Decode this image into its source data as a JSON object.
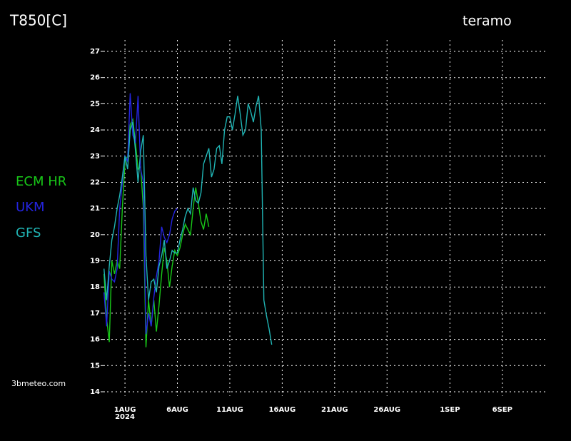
{
  "chart_data": {
    "type": "line",
    "title": "T850[C]",
    "subtitle": "teramo",
    "source": "3bmeteo.com",
    "year_label": "2024",
    "grid": true,
    "legend": "left",
    "x": [
      "2024-07-30T00:00",
      "2024-07-30T06:00",
      "2024-07-30T12:00",
      "2024-07-30T18:00",
      "2024-07-31T00:00",
      "2024-07-31T06:00",
      "2024-07-31T12:00",
      "2024-07-31T18:00",
      "2024-08-01T00:00",
      "2024-08-01T06:00",
      "2024-08-01T12:00",
      "2024-08-01T18:00",
      "2024-08-02T00:00",
      "2024-08-02T06:00",
      "2024-08-02T12:00",
      "2024-08-02T18:00",
      "2024-08-03T00:00",
      "2024-08-03T06:00",
      "2024-08-03T12:00",
      "2024-08-03T18:00",
      "2024-08-04T00:00",
      "2024-08-04T06:00",
      "2024-08-04T12:00",
      "2024-08-04T18:00",
      "2024-08-05T00:00",
      "2024-08-05T06:00",
      "2024-08-05T12:00",
      "2024-08-05T18:00",
      "2024-08-06T00:00",
      "2024-08-06T06:00",
      "2024-08-06T12:00",
      "2024-08-06T18:00",
      "2024-08-07T00:00",
      "2024-08-07T06:00",
      "2024-08-07T12:00",
      "2024-08-07T18:00",
      "2024-08-08T00:00",
      "2024-08-08T06:00",
      "2024-08-08T12:00",
      "2024-08-08T18:00",
      "2024-08-09T00:00",
      "2024-08-09T06:00",
      "2024-08-09T12:00",
      "2024-08-09T18:00",
      "2024-08-10T00:00",
      "2024-08-10T06:00",
      "2024-08-10T12:00",
      "2024-08-10T18:00",
      "2024-08-11T00:00",
      "2024-08-11T06:00",
      "2024-08-11T12:00",
      "2024-08-11T18:00",
      "2024-08-12T00:00",
      "2024-08-12T06:00",
      "2024-08-12T12:00",
      "2024-08-12T18:00",
      "2024-08-13T00:00",
      "2024-08-13T06:00",
      "2024-08-13T12:00",
      "2024-08-13T18:00",
      "2024-08-14T00:00",
      "2024-08-14T06:00",
      "2024-08-14T12:00",
      "2024-08-14T18:00",
      "2024-08-15T00:00"
    ],
    "series": [
      {
        "name": "ECM HR",
        "color": "#18c818",
        "values": [
          18.5,
          16.8,
          15.9,
          19.0,
          18.5,
          19.0,
          18.7,
          21.0,
          22.8,
          23.0,
          24.2,
          24.4,
          23.5,
          22.5,
          22.6,
          21.0,
          15.7,
          17.5,
          16.5,
          17.5,
          16.3,
          17.3,
          18.5,
          19.5,
          19.0,
          18.0,
          18.8,
          19.4,
          19.2,
          19.5,
          20.0,
          20.4,
          20.2,
          20.0,
          21.0,
          21.8,
          21.2,
          20.5,
          20.2,
          20.8,
          20.3,
          null,
          null,
          null,
          null,
          null,
          null,
          null,
          null,
          null,
          null,
          null,
          null,
          null,
          null,
          null,
          null,
          null,
          null,
          null,
          null,
          null,
          null,
          null,
          null
        ]
      },
      {
        "name": "UKM",
        "color": "#2424e0",
        "values": [
          17.8,
          16.5,
          18.6,
          18.3,
          18.2,
          18.7,
          21.0,
          22.0,
          23.0,
          22.8,
          25.4,
          23.8,
          23.5,
          25.3,
          22.5,
          22.0,
          16.2,
          17.0,
          16.5,
          17.6,
          18.4,
          19.0,
          20.3,
          19.9,
          19.7,
          20.0,
          20.6,
          20.9,
          21.0,
          null,
          null,
          null,
          null,
          null,
          null,
          null,
          null,
          null,
          null,
          null,
          null,
          null,
          null,
          null,
          null,
          null,
          null,
          null,
          null,
          null,
          null,
          null,
          null,
          null,
          null,
          null,
          null,
          null,
          null,
          null,
          null,
          null,
          null,
          null,
          null
        ]
      },
      {
        "name": "GFS",
        "color": "#20b4b4",
        "values": [
          18.7,
          17.5,
          18.8,
          19.8,
          20.3,
          21.0,
          21.5,
          22.2,
          23.0,
          22.5,
          24.0,
          24.3,
          23.2,
          22.0,
          23.2,
          23.8,
          19.2,
          17.5,
          18.2,
          18.3,
          17.8,
          18.8,
          19.2,
          19.8,
          18.7,
          19.0,
          19.4,
          19.3,
          19.3,
          19.8,
          20.2,
          20.7,
          21.0,
          20.8,
          21.8,
          21.3,
          21.2,
          21.6,
          22.7,
          23.0,
          23.3,
          22.2,
          22.5,
          23.3,
          23.4,
          22.7,
          24.0,
          24.5,
          24.5,
          24.0,
          24.6,
          25.3,
          24.6,
          23.8,
          24.0,
          25.0,
          24.7,
          24.3,
          24.9,
          25.3,
          24.0,
          17.5,
          16.9,
          16.4,
          15.8
        ]
      }
    ],
    "xlim": [
      "2024-07-30T07:00",
      "2024-09-10T04:00"
    ],
    "xticks": [
      {
        "value": "2024-08-01T00:00",
        "label": "1AUG"
      },
      {
        "value": "2024-08-06T00:00",
        "label": "6AUG"
      },
      {
        "value": "2024-08-11T00:00",
        "label": "11AUG"
      },
      {
        "value": "2024-08-16T00:00",
        "label": "16AUG"
      },
      {
        "value": "2024-08-21T00:00",
        "label": "21AUG"
      },
      {
        "value": "2024-08-26T00:00",
        "label": "26AUG"
      },
      {
        "value": "2024-09-01T00:00",
        "label": "1SEP"
      },
      {
        "value": "2024-09-06T00:00",
        "label": "6SEP"
      }
    ],
    "ylim": [
      14,
      27
    ],
    "yticks": [
      14,
      15,
      16,
      17,
      18,
      19,
      20,
      21,
      22,
      23,
      24,
      25,
      26,
      27
    ]
  }
}
